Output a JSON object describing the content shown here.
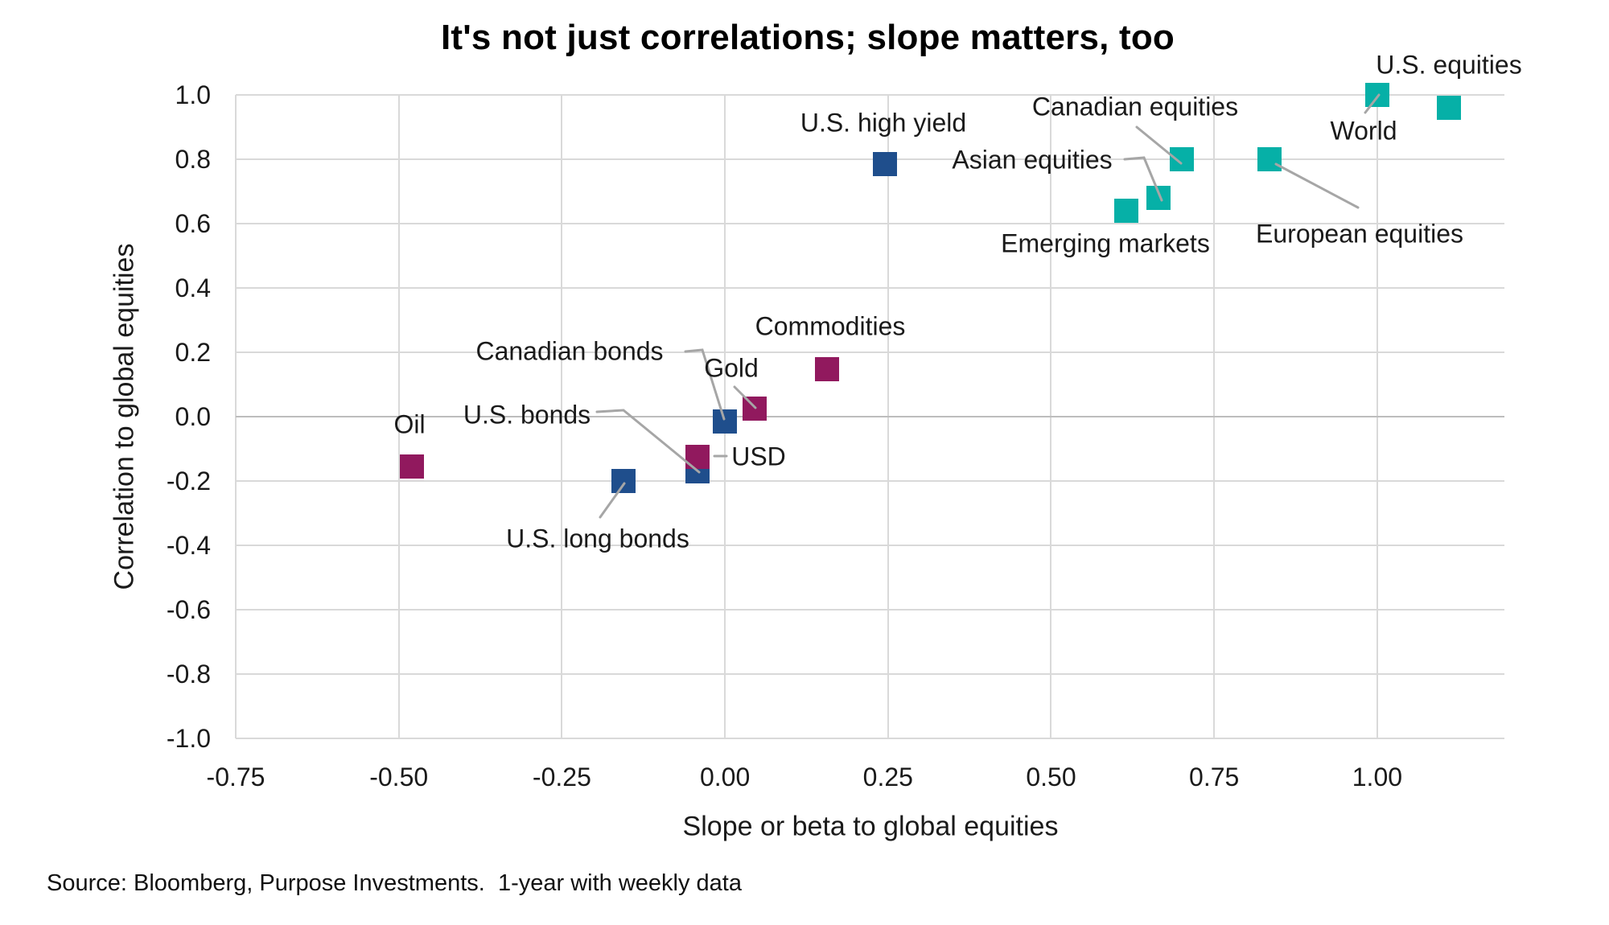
{
  "title": "It's not just correlations; slope matters, too",
  "source": "Source: Bloomberg, Purpose Investments.  1-year with weekly data",
  "axes": {
    "x": {
      "label": "Slope or beta to global equities",
      "ticks": [
        "-0.75",
        "-0.50",
        "-0.25",
        "0.00",
        "0.25",
        "0.50",
        "0.75",
        "1.00"
      ]
    },
    "y": {
      "label": "Correlation to global equities",
      "ticks": [
        "1.0",
        "0.8",
        "0.6",
        "0.4",
        "0.2",
        "0.0",
        "-0.2",
        "-0.4",
        "-0.6",
        "-0.8",
        "-1.0"
      ]
    }
  },
  "colors": {
    "teal": "#06b0a7",
    "navy": "#1f4e8c",
    "magenta": "#91195e",
    "gridline": "#d9d9d9",
    "zero_gridline": "#bdbdbd",
    "leader_line": "#a6a6a6",
    "text": "#1a1a1a"
  },
  "chart_data": {
    "type": "scatter",
    "title": "It's not just correlations; slope matters, too",
    "xlabel": "Slope or beta to global equities",
    "ylabel": "Correlation to global equities",
    "xlim": [
      -0.75,
      1.195
    ],
    "ylim": [
      -1.0,
      1.0
    ],
    "x_tick_values": [
      -0.75,
      -0.5,
      -0.25,
      0,
      0.25,
      0.5,
      0.75,
      1.0
    ],
    "y_tick_values": [
      1.0,
      0.8,
      0.6,
      0.4,
      0.2,
      0.0,
      -0.2,
      -0.4,
      -0.6,
      -0.8,
      -1.0
    ],
    "grid": true,
    "legend": "none",
    "marker": "square",
    "series": [
      {
        "name": "teal",
        "color": "#06b0a7",
        "points": [
          {
            "id": "emerging-markets",
            "label": "Emerging markets",
            "x": 0.615,
            "y": 0.64
          },
          {
            "id": "asian-equities",
            "label": "Asian equities",
            "x": 0.665,
            "y": 0.68
          },
          {
            "id": "canadian-equities",
            "label": "Canadian equities",
            "x": 0.7,
            "y": 0.8
          },
          {
            "id": "european-equities",
            "label": "European equities",
            "x": 0.835,
            "y": 0.8
          },
          {
            "id": "world",
            "label": "World",
            "x": 1.0,
            "y": 1.0
          },
          {
            "id": "us-equities",
            "label": "U.S. equities",
            "x": 1.11,
            "y": 0.96
          }
        ]
      },
      {
        "name": "navy",
        "color": "#1f4e8c",
        "points": [
          {
            "id": "us-high-yield",
            "label": "U.S. high yield",
            "x": 0.245,
            "y": 0.785
          },
          {
            "id": "canadian-bonds",
            "label": "Canadian bonds",
            "x": 0.0,
            "y": -0.015
          },
          {
            "id": "us-bonds",
            "label": "U.S. bonds",
            "x": -0.042,
            "y": -0.17
          },
          {
            "id": "us-long-bonds",
            "label": "U.S. long bonds",
            "x": -0.155,
            "y": -0.2
          }
        ]
      },
      {
        "name": "magenta",
        "color": "#91195e",
        "points": [
          {
            "id": "commodities",
            "label": "Commodities",
            "x": 0.157,
            "y": 0.147
          },
          {
            "id": "gold",
            "label": "Gold",
            "x": 0.045,
            "y": 0.025
          },
          {
            "id": "usd",
            "label": "USD",
            "x": -0.042,
            "y": -0.125
          },
          {
            "id": "oil",
            "label": "Oil",
            "x": -0.48,
            "y": -0.155
          }
        ]
      }
    ]
  }
}
